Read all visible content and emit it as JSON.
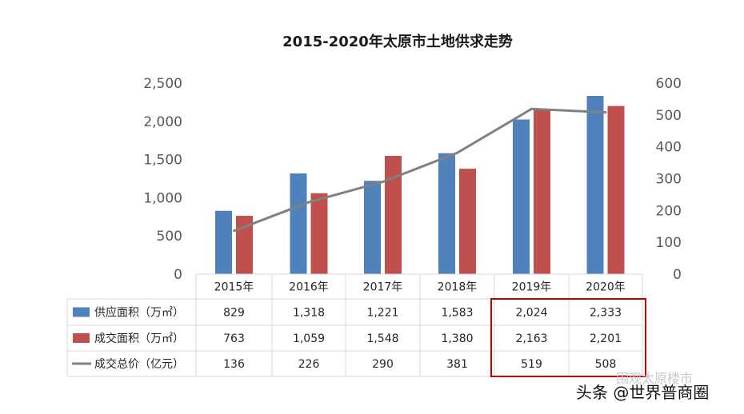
{
  "chart_data": {
    "type": "bar",
    "title": "2015-2020年太原市土地供求走势",
    "categories": [
      "2015年",
      "2016年",
      "2017年",
      "2018年",
      "2019年",
      "2020年"
    ],
    "series": [
      {
        "name": "供应面积（万㎡）",
        "type": "bar",
        "axis": "left",
        "color": "#4f81bd",
        "values": [
          829,
          1318,
          1221,
          1583,
          2024,
          2333
        ],
        "labels": [
          "829",
          "1,318",
          "1,221",
          "1,583",
          "2,024",
          "2,333"
        ]
      },
      {
        "name": "成交面积（万㎡）",
        "type": "bar",
        "axis": "left",
        "color": "#c0504d",
        "values": [
          763,
          1059,
          1548,
          1380,
          2163,
          2201
        ],
        "labels": [
          "763",
          "1,059",
          "1,548",
          "1,380",
          "2,163",
          "2,201"
        ]
      },
      {
        "name": "成交总价（亿元）",
        "type": "line",
        "axis": "right",
        "color": "#808080",
        "values": [
          136,
          226,
          290,
          381,
          519,
          508
        ],
        "labels": [
          "136",
          "226",
          "290",
          "381",
          "519",
          "508"
        ]
      }
    ],
    "ylim_left": [
      0,
      2500
    ],
    "ylim_right": [
      0,
      600
    ],
    "left_ticks": [
      "0",
      "500",
      "1,000",
      "1,500",
      "2,000",
      "2,500"
    ],
    "right_ticks": [
      "0",
      "100",
      "200",
      "300",
      "400",
      "500",
      "600"
    ],
    "grid": false,
    "legend": "data-table",
    "highlight_color": "#c00000"
  },
  "watermark": {
    "main": "头条 @世界普商圈",
    "secondary": "围观太原楼市"
  }
}
